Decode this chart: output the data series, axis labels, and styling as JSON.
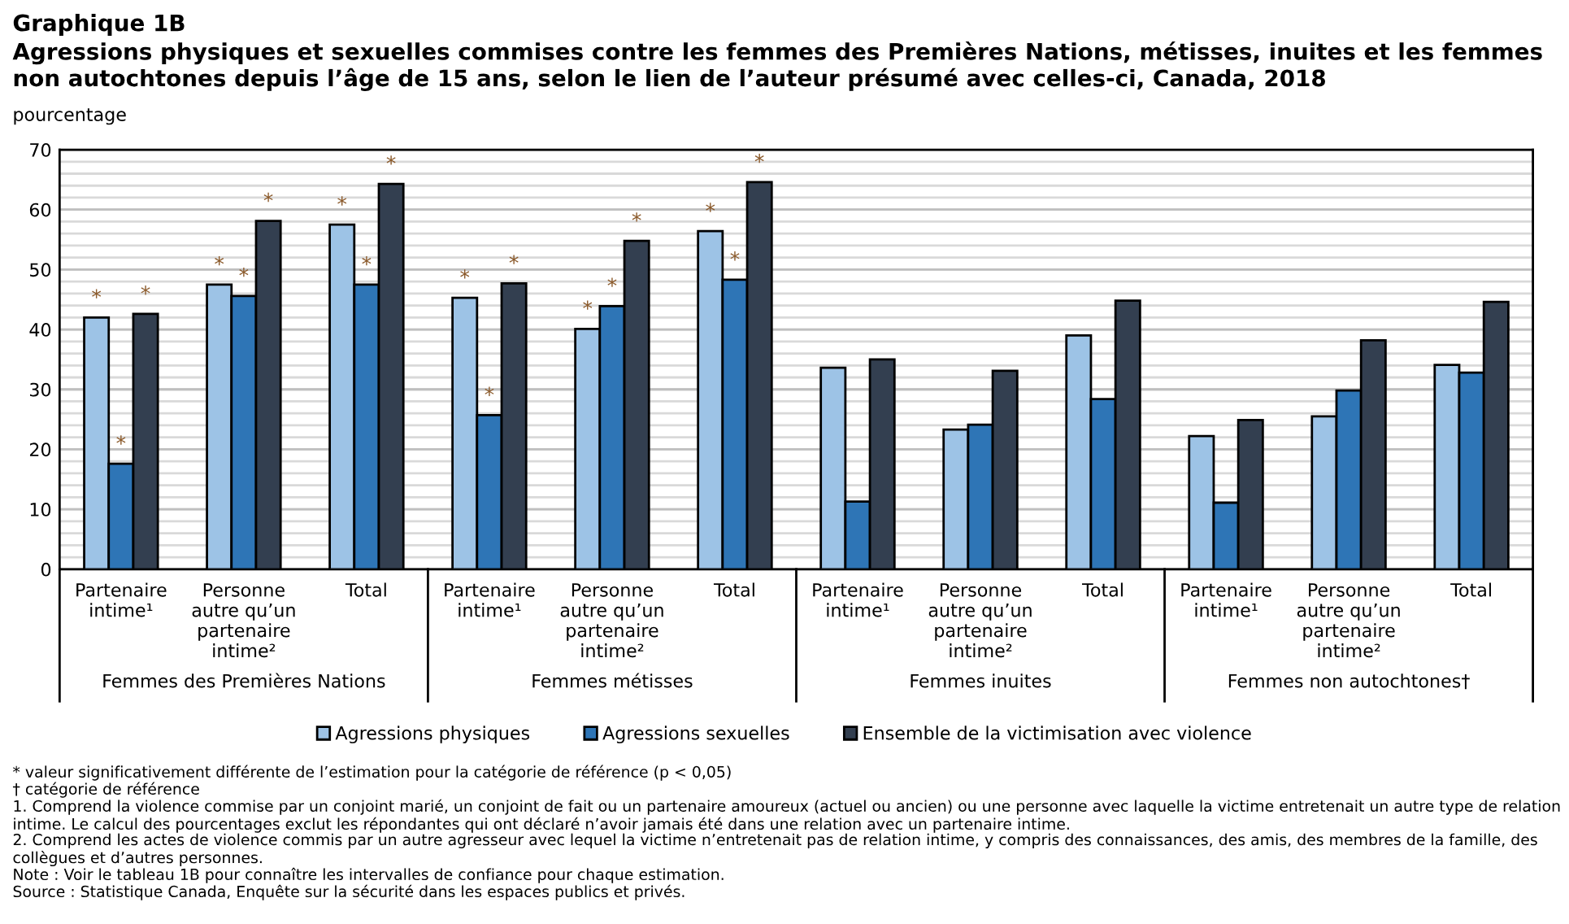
{
  "chart_data": {
    "type": "bar",
    "title": "Graphique 1B",
    "subtitle": "Agressions physiques et sexuelles commises contre les femmes des Premières Nations, métisses, inuites et les femmes non autochtones depuis l’âge de 15 ans, selon le lien de l’auteur présumé avec celles-ci, Canada, 2018",
    "ylabel": "pourcentage",
    "categories": [
      "Partenaire\nintime¹",
      "Personne\nautre qu’un\npartenaire\nintime²",
      "Total",
      "Partenaire\nintime¹",
      "Personne\nautre qu’un\npartenaire\nintime²",
      "Total",
      "Partenaire\nintime¹",
      "Personne\nautre qu’un\npartenaire\nintime²",
      "Total",
      "Partenaire\nintime¹",
      "Personne\nautre qu’un\npartenaire\nintime²",
      "Total"
    ],
    "series": [
      {
        "name": "Agressions physiques",
        "color": "#9dc3e6",
        "values": [
          42.0,
          47.5,
          57.5,
          45.3,
          40.1,
          56.4,
          33.6,
          23.3,
          39.0,
          22.2,
          25.5,
          34.1
        ],
        "value_labels": [
          "*",
          "*",
          "*",
          "*",
          "*",
          "*",
          null,
          null,
          null,
          null,
          null,
          null
        ]
      },
      {
        "name": "Agressions sexuelles",
        "color": "#2e75b6",
        "values": [
          17.6,
          45.6,
          47.5,
          25.7,
          43.9,
          48.3,
          11.3,
          24.1,
          28.4,
          11.1,
          29.8,
          32.8
        ],
        "value_labels": [
          "*",
          "*",
          "*",
          "*",
          "*",
          "*",
          null,
          null,
          null,
          null,
          null,
          null
        ]
      },
      {
        "name": "Ensemble de la victimisation avec violence",
        "color": "#333f50",
        "values": [
          42.6,
          58.1,
          64.3,
          47.7,
          54.8,
          64.6,
          35.0,
          33.1,
          44.8,
          24.9,
          38.2,
          44.6
        ],
        "value_labels": [
          "*",
          "*",
          "*",
          "*",
          "*",
          "*",
          null,
          null,
          null,
          null,
          null,
          null
        ]
      }
    ],
    "ylim": [
      0,
      70
    ],
    "yticks": [
      0,
      10,
      20,
      30,
      40,
      50,
      60,
      70
    ],
    "grid": "y",
    "legend": "bottom",
    "annotations": [
      "Femmes des Premières Nations",
      "Femmes métisses",
      "Femmes inuites",
      "Femmes non autochtones†",
      "* valeur significativement différente de l’estimation pour la catégorie de référence (p < 0,05)",
      "† catégorie de référence",
      "1. Comprend la violence commise par un conjoint marié, un conjoint de fait ou un partenaire amoureux (actuel ou ancien) ou une personne avec laquelle la victime entretenait un autre type de relation intime. Le calcul des pourcentages exclut les répondantes qui ont déclaré n’avoir jamais été dans une relation avec un partenaire intime.",
      "2. Comprend les actes de violence commis par un autre agresseur avec lequel la victime n’entretenait pas de relation intime, y compris des connaissances, des amis, des membres de la famille, des collègues et d’autres personnes.",
      "Note : Voir le tableau 1B pour connaître les intervalles de confiance pour chaque estimation.",
      "Source : Statistique Canada, Enquête sur la sécurité dans les espaces publics et privés."
    ]
  }
}
